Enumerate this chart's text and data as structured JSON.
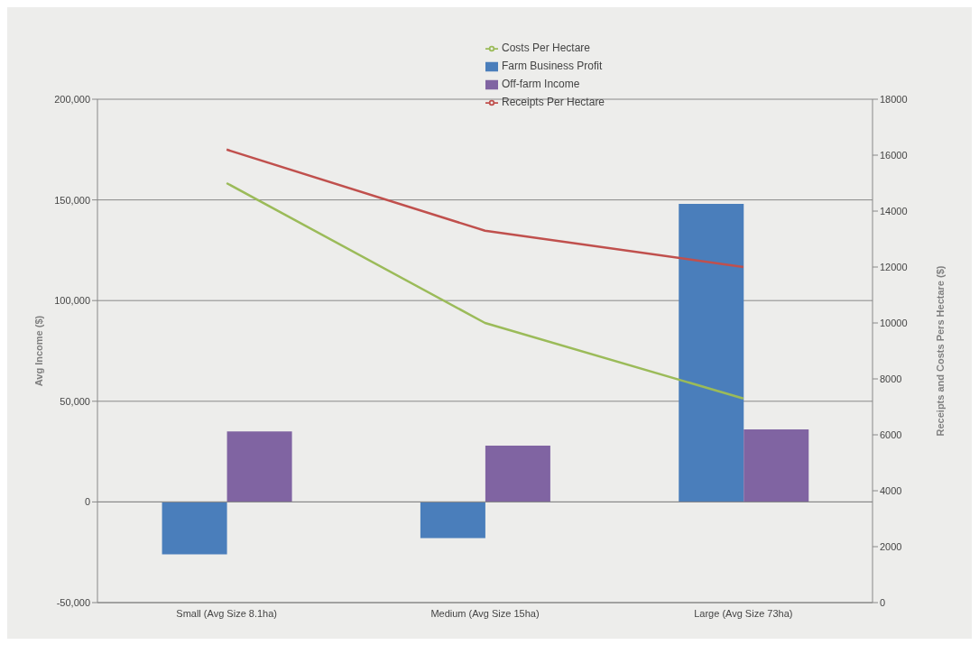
{
  "chart_data": {
    "type": "bar",
    "categories": [
      "Small (Avg Size 8.1ha)",
      "Medium (Avg Size 15ha)",
      "Large (Avg Size 73ha)"
    ],
    "ylabel": "Avg Income ($)",
    "y2label": "Receipts and Costs Pers Hectare ($)",
    "series": [
      {
        "name": "Farm Business Profit",
        "color": "#4a7ebb",
        "values": [
          -26000,
          -18000,
          148000
        ]
      },
      {
        "name": "Off-farm Income",
        "color": "#8064a2",
        "values": [
          35000,
          28000,
          36000
        ]
      },
      {
        "name": "Receipts Per Hectare",
        "type": "line",
        "axis": "y2",
        "color": "#c0504d",
        "values": [
          16200,
          13300,
          12000
        ]
      },
      {
        "name": "Costs Per Hectare",
        "type": "line",
        "axis": "y2",
        "color": "#9bbb59",
        "values": [
          15000,
          10000,
          7300
        ]
      }
    ],
    "ylim": [
      -50000,
      200000
    ],
    "yticks": [
      {
        "value": -50000,
        "label": "-50,000"
      },
      {
        "value": 0,
        "label": "0"
      },
      {
        "value": 50000,
        "label": "50,000"
      },
      {
        "value": 100000,
        "label": "100,000"
      },
      {
        "value": 150000,
        "label": "150,000"
      },
      {
        "value": 200000,
        "label": "200,000"
      }
    ],
    "y2lim": [
      0,
      18000
    ],
    "y2ticks": [
      0,
      2000,
      4000,
      6000,
      8000,
      10000,
      12000,
      14000,
      16000,
      18000
    ],
    "grid": "y",
    "legend": "top",
    "marker": "none",
    "line_style": "solid"
  }
}
